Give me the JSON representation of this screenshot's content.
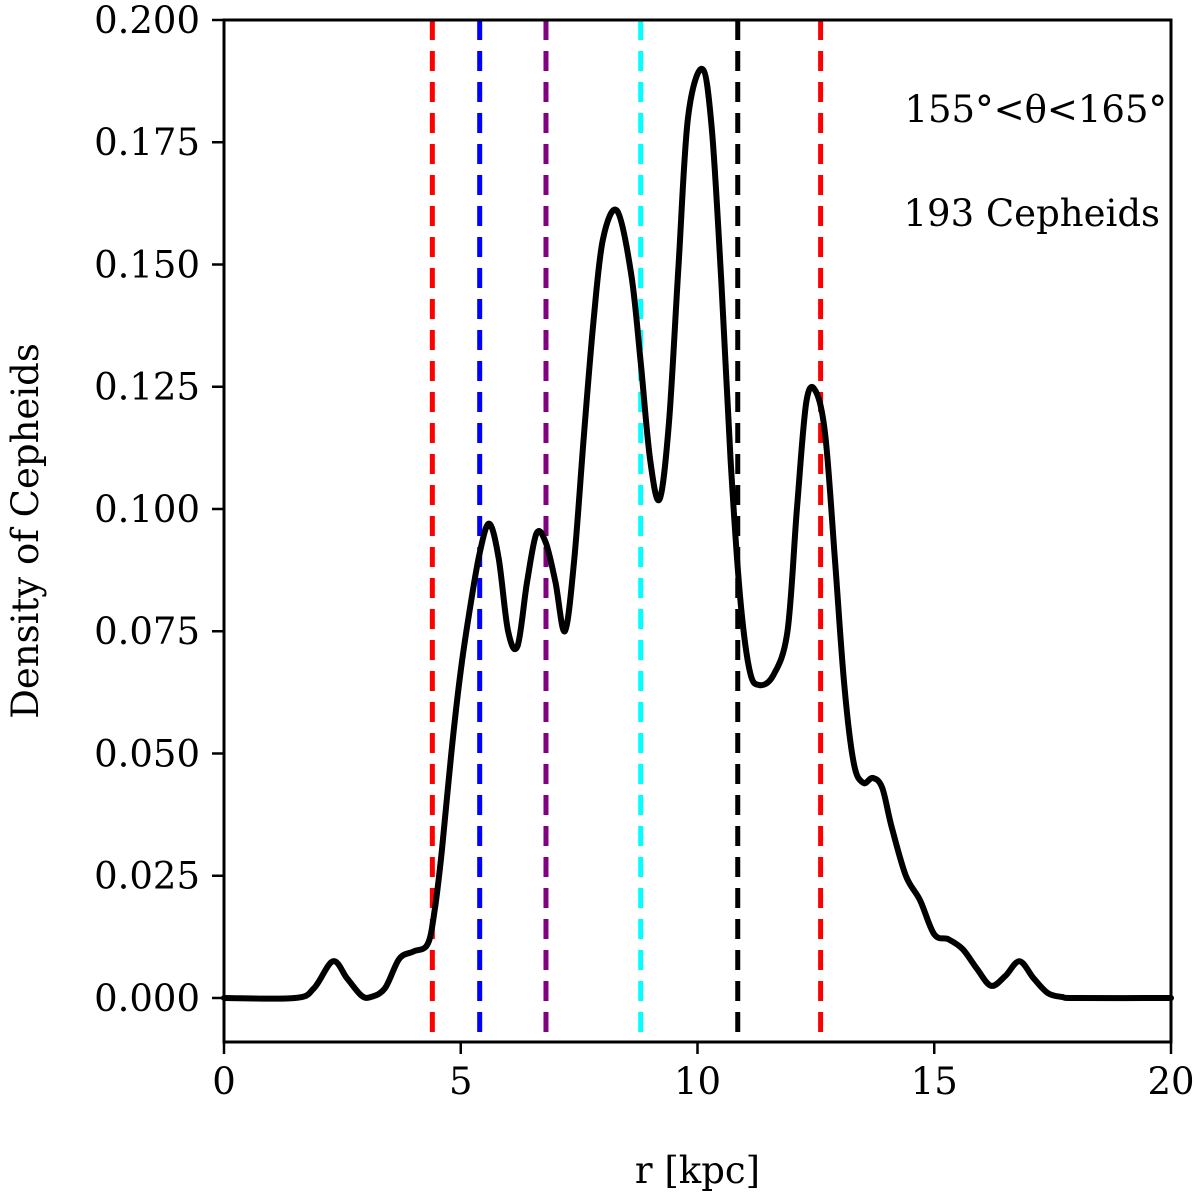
{
  "chart_data": {
    "type": "line",
    "title": "",
    "xlabel": "r [kpc]",
    "ylabel": "Density of Cepheids",
    "xlim": [
      0,
      20
    ],
    "ylim": [
      -0.009,
      0.2
    ],
    "grid": false,
    "x_ticks": [
      0,
      5,
      10,
      15,
      20
    ],
    "x_tick_labels": [
      "0",
      "5",
      "10",
      "15",
      "20"
    ],
    "y_ticks": [
      0,
      0.025,
      0.05,
      0.075,
      0.1,
      0.125,
      0.15,
      0.175,
      0.2
    ],
    "y_tick_labels": [
      "0.000",
      "0.025",
      "0.050",
      "0.075",
      "0.100",
      "0.125",
      "0.150",
      "0.175",
      "0.200"
    ],
    "annotations": {
      "angle_range": "155°<θ<165°",
      "count": "193 Cepheids"
    },
    "series": [
      {
        "name": "density",
        "color": "#000000",
        "x": [
          0,
          1.5,
          1.9,
          2.3,
          2.6,
          2.9,
          3.1,
          3.4,
          3.7,
          4.0,
          4.3,
          4.45,
          4.6,
          4.8,
          5.0,
          5.2,
          5.4,
          5.6,
          5.8,
          6.0,
          6.2,
          6.4,
          6.6,
          6.8,
          7.0,
          7.2,
          7.4,
          7.6,
          7.8,
          8.0,
          8.3,
          8.6,
          8.8,
          9.0,
          9.2,
          9.4,
          9.6,
          9.8,
          10.1,
          10.3,
          10.5,
          10.7,
          10.9,
          11.1,
          11.3,
          11.6,
          11.9,
          12.1,
          12.3,
          12.5,
          12.7,
          12.9,
          13.1,
          13.3,
          13.5,
          13.7,
          13.9,
          14.1,
          14.4,
          14.7,
          15.0,
          15.3,
          15.6,
          15.9,
          16.2,
          16.5,
          16.8,
          17.1,
          17.4,
          17.7,
          18.0,
          20.0
        ],
        "values": [
          0,
          0,
          0.002,
          0.0075,
          0.004,
          0.0005,
          0.0002,
          0.002,
          0.008,
          0.0095,
          0.011,
          0.018,
          0.03,
          0.05,
          0.067,
          0.08,
          0.091,
          0.097,
          0.09,
          0.075,
          0.072,
          0.085,
          0.095,
          0.093,
          0.085,
          0.075,
          0.09,
          0.115,
          0.138,
          0.155,
          0.161,
          0.148,
          0.13,
          0.11,
          0.102,
          0.118,
          0.15,
          0.18,
          0.19,
          0.178,
          0.147,
          0.11,
          0.082,
          0.067,
          0.064,
          0.066,
          0.075,
          0.1,
          0.122,
          0.124,
          0.115,
          0.09,
          0.064,
          0.048,
          0.044,
          0.045,
          0.043,
          0.035,
          0.025,
          0.02,
          0.013,
          0.012,
          0.01,
          0.006,
          0.0025,
          0.0045,
          0.0075,
          0.004,
          0.001,
          0.0002,
          0,
          0
        ]
      }
    ],
    "vertical_lines": [
      {
        "x": 4.4,
        "color": "#ff0000"
      },
      {
        "x": 5.4,
        "color": "#0000ff"
      },
      {
        "x": 6.8,
        "color": "#800080"
      },
      {
        "x": 8.8,
        "color": "#00ffff"
      },
      {
        "x": 10.85,
        "color": "#000000"
      },
      {
        "x": 12.6,
        "color": "#ff0000"
      }
    ]
  }
}
